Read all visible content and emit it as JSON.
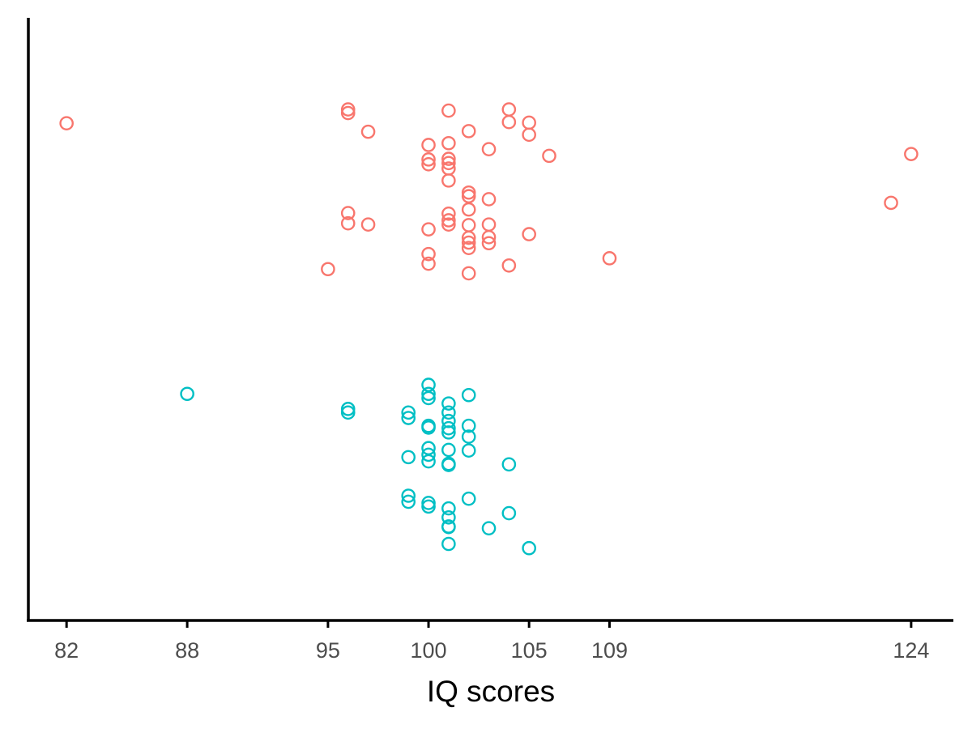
{
  "chart_data": {
    "type": "scatter",
    "title": "",
    "xlabel": "IQ scores",
    "ylabel": "",
    "x_ticks": [
      82,
      88,
      95,
      100,
      105,
      109,
      124
    ],
    "xlim": [
      80.1,
      126.1
    ],
    "ylim": [
      0,
      1
    ],
    "grid": false,
    "legend": "none",
    "jitter": "vertical",
    "series": [
      {
        "color": "#F8766D",
        "points": [
          [
            82,
            0.825
          ],
          [
            96,
            0.848
          ],
          [
            96,
            0.842
          ],
          [
            97,
            0.811
          ],
          [
            101,
            0.846
          ],
          [
            104,
            0.848
          ],
          [
            104,
            0.827
          ],
          [
            105,
            0.826
          ],
          [
            105,
            0.806
          ],
          [
            102,
            0.812
          ],
          [
            101,
            0.792
          ],
          [
            103,
            0.782
          ],
          [
            106,
            0.771
          ],
          [
            100,
            0.789
          ],
          [
            100,
            0.765
          ],
          [
            101,
            0.766
          ],
          [
            100,
            0.757
          ],
          [
            101,
            0.759
          ],
          [
            101,
            0.75
          ],
          [
            101,
            0.73
          ],
          [
            102,
            0.71
          ],
          [
            102,
            0.704
          ],
          [
            103,
            0.699
          ],
          [
            102,
            0.682
          ],
          [
            96,
            0.676
          ],
          [
            101,
            0.675
          ],
          [
            101,
            0.664
          ],
          [
            96,
            0.659
          ],
          [
            97,
            0.657
          ],
          [
            101,
            0.657
          ],
          [
            102,
            0.656
          ],
          [
            103,
            0.657
          ],
          [
            100,
            0.649
          ],
          [
            105,
            0.641
          ],
          [
            103,
            0.636
          ],
          [
            102,
            0.635
          ],
          [
            103,
            0.626
          ],
          [
            102,
            0.627
          ],
          [
            102,
            0.618
          ],
          [
            100,
            0.608
          ],
          [
            100,
            0.592
          ],
          [
            109,
            0.601
          ],
          [
            95,
            0.583
          ],
          [
            104,
            0.589
          ],
          [
            102,
            0.576
          ],
          [
            124,
            0.774
          ],
          [
            123,
            0.693
          ]
        ]
      },
      {
        "color": "#00BFC4",
        "points": [
          [
            88,
            0.376
          ],
          [
            100,
            0.391
          ],
          [
            100,
            0.376
          ],
          [
            100,
            0.369
          ],
          [
            102,
            0.374
          ],
          [
            101,
            0.36
          ],
          [
            96,
            0.351
          ],
          [
            96,
            0.345
          ],
          [
            99,
            0.345
          ],
          [
            101,
            0.345
          ],
          [
            99,
            0.336
          ],
          [
            101,
            0.331
          ],
          [
            100,
            0.323
          ],
          [
            100,
            0.32
          ],
          [
            102,
            0.323
          ],
          [
            101,
            0.319
          ],
          [
            101,
            0.312
          ],
          [
            102,
            0.305
          ],
          [
            100,
            0.286
          ],
          [
            101,
            0.283
          ],
          [
            102,
            0.282
          ],
          [
            100,
            0.275
          ],
          [
            99,
            0.271
          ],
          [
            100,
            0.264
          ],
          [
            101,
            0.26
          ],
          [
            101,
            0.258
          ],
          [
            104,
            0.259
          ],
          [
            99,
            0.207
          ],
          [
            99,
            0.197
          ],
          [
            102,
            0.202
          ],
          [
            100,
            0.189
          ],
          [
            100,
            0.195
          ],
          [
            101,
            0.186
          ],
          [
            101,
            0.171
          ],
          [
            104,
            0.178
          ],
          [
            101,
            0.156
          ],
          [
            101,
            0.155
          ],
          [
            103,
            0.153
          ],
          [
            101,
            0.127
          ],
          [
            105,
            0.12
          ]
        ]
      }
    ]
  }
}
